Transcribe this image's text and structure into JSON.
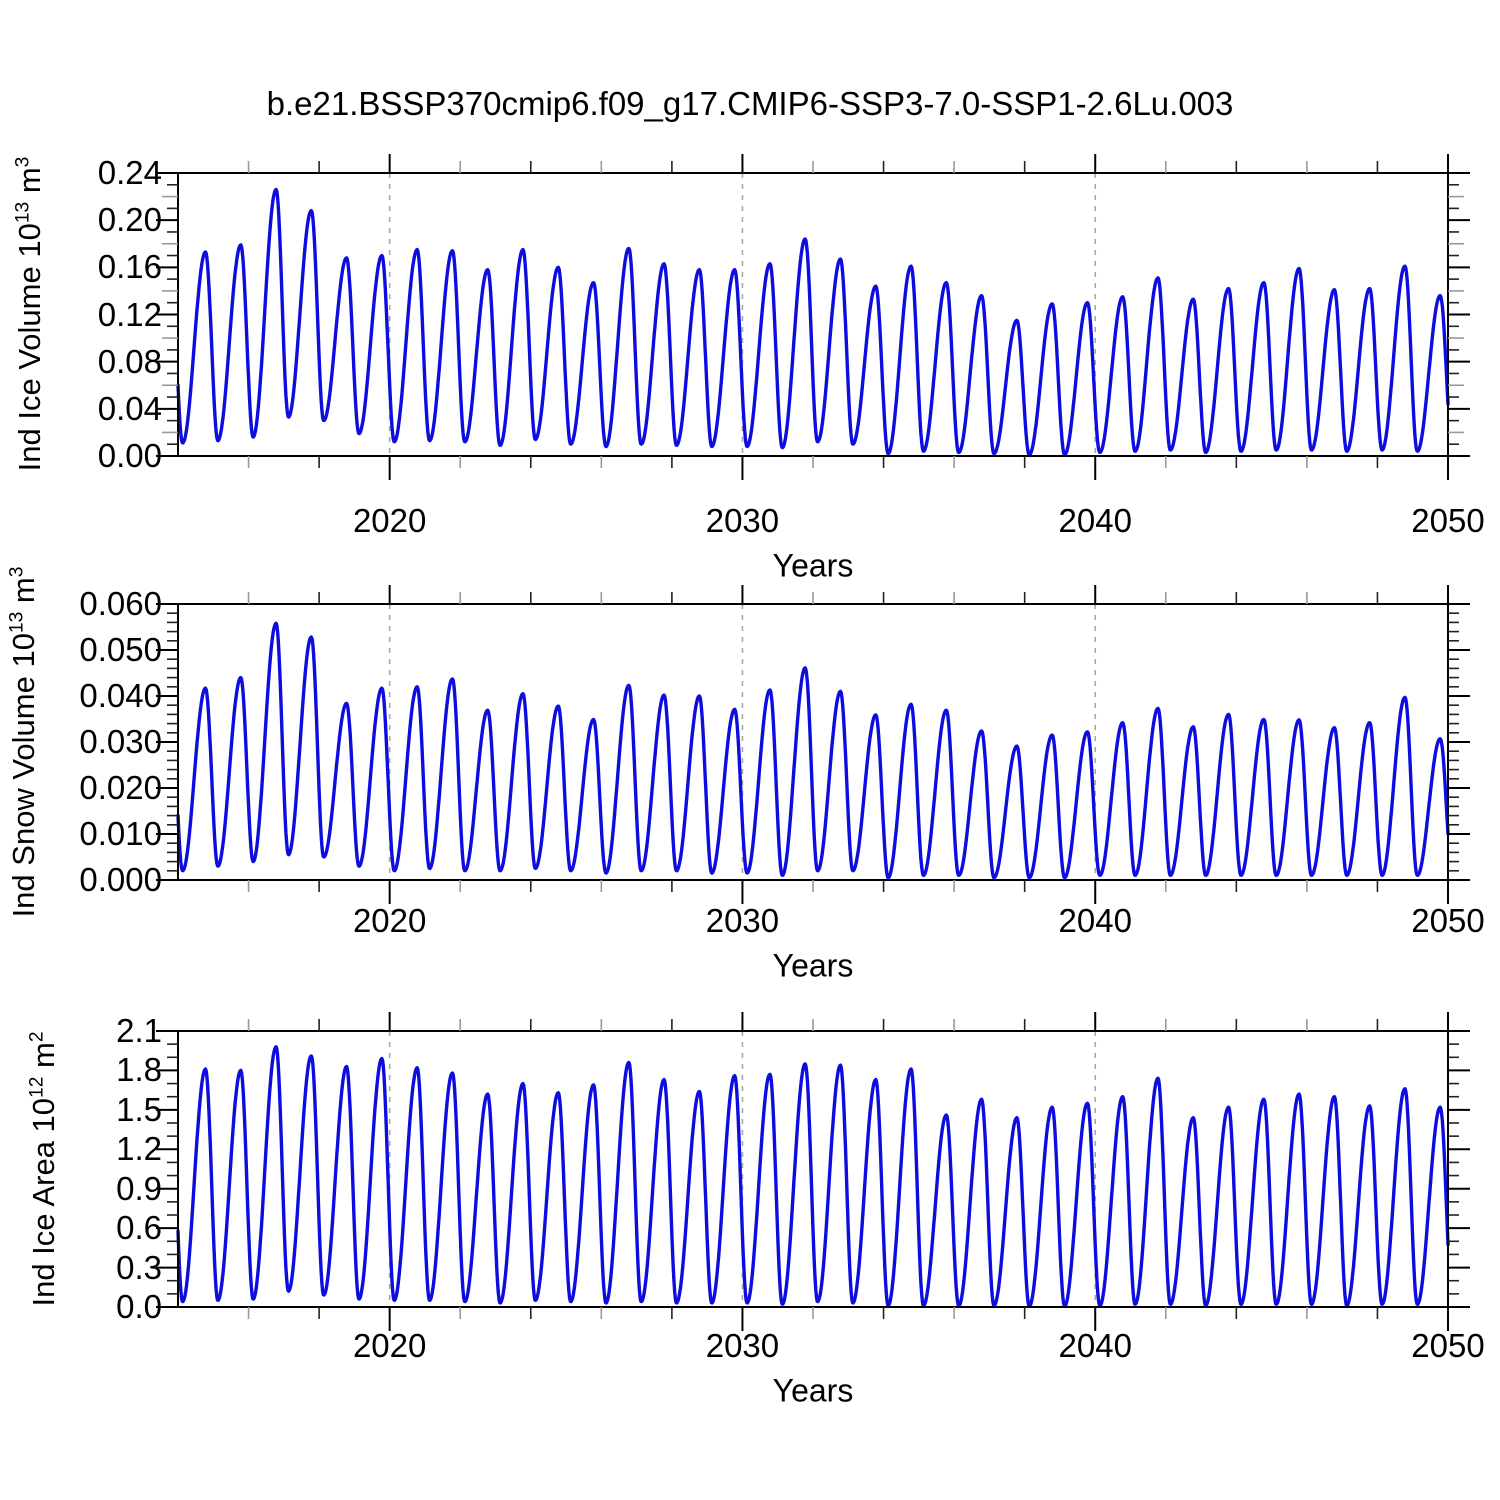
{
  "title": "b.e21.BSSP370cmip6.f09_g17.CMIP6-SSP3-7.0-SSP1-2.6Lu.003",
  "colors": {
    "line": "#0d0de0",
    "frame": "#000000",
    "grid": "#a8a8a8",
    "minor_tick": "#222222",
    "minor_tick_alt": "#999999"
  },
  "chart_data": [
    {
      "type": "line",
      "name": "ice-volume",
      "ylabel": {
        "text": "Ind Ice Volume 10",
        "exp": "13",
        "unit": " m",
        "unit_exp": "3"
      },
      "xlabel": "Years",
      "x_range": [
        2014,
        2050
      ],
      "x_tick_labels": [
        "2020",
        "2030",
        "2040",
        "2050"
      ],
      "x_tick_values": [
        2020,
        2030,
        2040,
        2050
      ],
      "x_minor_step": 2,
      "grid_years": [
        2020,
        2030,
        2040
      ],
      "y_range": [
        0,
        0.24
      ],
      "y_tick_labels": [
        "0.00",
        "0.04",
        "0.08",
        "0.12",
        "0.16",
        "0.20",
        "0.24"
      ],
      "y_tick_values": [
        0,
        0.04,
        0.08,
        0.12,
        0.16,
        0.2,
        0.24
      ],
      "y_minor_step": 0.01,
      "legend": null,
      "grid_on": false,
      "seasonal": {
        "min_phase": 0.13,
        "max_phase": 0.78,
        "years": [
          2014,
          2015,
          2016,
          2017,
          2018,
          2019,
          2020,
          2021,
          2022,
          2023,
          2024,
          2025,
          2026,
          2027,
          2028,
          2029,
          2030,
          2031,
          2032,
          2033,
          2034,
          2035,
          2036,
          2037,
          2038,
          2039,
          2040,
          2041,
          2042,
          2043,
          2044,
          2045,
          2046,
          2047,
          2048,
          2049
        ],
        "max": [
          0.173,
          0.179,
          0.226,
          0.208,
          0.168,
          0.17,
          0.175,
          0.174,
          0.158,
          0.175,
          0.16,
          0.147,
          0.176,
          0.163,
          0.158,
          0.158,
          0.163,
          0.184,
          0.167,
          0.144,
          0.161,
          0.147,
          0.136,
          0.115,
          0.129,
          0.13,
          0.135,
          0.151,
          0.133,
          0.142,
          0.147,
          0.159,
          0.141,
          0.142,
          0.161,
          0.136
        ],
        "min": [
          0.011,
          0.013,
          0.016,
          0.033,
          0.03,
          0.019,
          0.012,
          0.013,
          0.012,
          0.009,
          0.014,
          0.01,
          0.008,
          0.01,
          0.009,
          0.008,
          0.008,
          0.007,
          0.012,
          0.01,
          0.002,
          0.004,
          0.003,
          0.002,
          0.001,
          0.001,
          0.003,
          0.004,
          0.005,
          0.003,
          0.004,
          0.005,
          0.005,
          0.004,
          0.005,
          0.004
        ]
      }
    },
    {
      "type": "line",
      "name": "snow-volume",
      "ylabel": {
        "text": "Ind Snow Volume 10",
        "exp": "13",
        "unit": " m",
        "unit_exp": "3"
      },
      "xlabel": "Years",
      "x_range": [
        2014,
        2050
      ],
      "x_tick_labels": [
        "2020",
        "2030",
        "2040",
        "2050"
      ],
      "x_tick_values": [
        2020,
        2030,
        2040,
        2050
      ],
      "x_minor_step": 2,
      "grid_years": [
        2020,
        2030,
        2040
      ],
      "y_range": [
        0,
        0.06
      ],
      "y_tick_labels": [
        "0.000",
        "0.010",
        "0.020",
        "0.030",
        "0.040",
        "0.050",
        "0.060"
      ],
      "y_tick_values": [
        0,
        0.01,
        0.02,
        0.03,
        0.04,
        0.05,
        0.06
      ],
      "y_minor_step": 0.002,
      "legend": null,
      "grid_on": false,
      "seasonal": {
        "min_phase": 0.13,
        "max_phase": 0.78,
        "years": [
          2014,
          2015,
          2016,
          2017,
          2018,
          2019,
          2020,
          2021,
          2022,
          2023,
          2024,
          2025,
          2026,
          2027,
          2028,
          2029,
          2030,
          2031,
          2032,
          2033,
          2034,
          2035,
          2036,
          2037,
          2038,
          2039,
          2040,
          2041,
          2042,
          2043,
          2044,
          2045,
          2046,
          2047,
          2048,
          2049
        ],
        "max": [
          0.0417,
          0.044,
          0.0558,
          0.0528,
          0.0384,
          0.0417,
          0.042,
          0.0437,
          0.0369,
          0.0405,
          0.0378,
          0.0349,
          0.0423,
          0.0402,
          0.04,
          0.0371,
          0.0413,
          0.0461,
          0.041,
          0.0359,
          0.0382,
          0.0369,
          0.0324,
          0.0291,
          0.0315,
          0.0322,
          0.0342,
          0.0373,
          0.0333,
          0.036,
          0.0349,
          0.0348,
          0.0331,
          0.0342,
          0.0397,
          0.0307
        ],
        "min": [
          0.002,
          0.003,
          0.004,
          0.0055,
          0.005,
          0.003,
          0.002,
          0.0025,
          0.002,
          0.002,
          0.0025,
          0.002,
          0.0015,
          0.002,
          0.002,
          0.0015,
          0.0015,
          0.001,
          0.002,
          0.002,
          0.0005,
          0.001,
          0.001,
          0.0005,
          0.0005,
          0.0005,
          0.001,
          0.001,
          0.001,
          0.001,
          0.001,
          0.001,
          0.001,
          0.001,
          0.001,
          0.001
        ]
      }
    },
    {
      "type": "line",
      "name": "ice-area",
      "ylabel": {
        "text": "Ind Ice Area 10",
        "exp": "12",
        "unit": " m",
        "unit_exp": "2"
      },
      "xlabel": "Years",
      "x_range": [
        2014,
        2050
      ],
      "x_tick_labels": [
        "2020",
        "2030",
        "2040",
        "2050"
      ],
      "x_tick_values": [
        2020,
        2030,
        2040,
        2050
      ],
      "x_minor_step": 2,
      "grid_years": [
        2020,
        2030,
        2040
      ],
      "y_range": [
        0,
        2.1
      ],
      "y_tick_labels": [
        "0.0",
        "0.3",
        "0.6",
        "0.9",
        "1.2",
        "1.5",
        "1.8",
        "2.1"
      ],
      "y_tick_values": [
        0,
        0.3,
        0.6,
        0.9,
        1.2,
        1.5,
        1.8,
        2.1
      ],
      "y_minor_step": 0.1,
      "legend": null,
      "grid_on": false,
      "seasonal": {
        "min_phase": 0.13,
        "max_phase": 0.78,
        "years": [
          2014,
          2015,
          2016,
          2017,
          2018,
          2019,
          2020,
          2021,
          2022,
          2023,
          2024,
          2025,
          2026,
          2027,
          2028,
          2029,
          2030,
          2031,
          2032,
          2033,
          2034,
          2035,
          2036,
          2037,
          2038,
          2039,
          2040,
          2041,
          2042,
          2043,
          2044,
          2045,
          2046,
          2047,
          2048,
          2049
        ],
        "max": [
          1.81,
          1.8,
          1.98,
          1.91,
          1.83,
          1.89,
          1.82,
          1.78,
          1.62,
          1.7,
          1.63,
          1.69,
          1.86,
          1.73,
          1.64,
          1.76,
          1.77,
          1.85,
          1.84,
          1.73,
          1.81,
          1.46,
          1.58,
          1.44,
          1.52,
          1.55,
          1.6,
          1.74,
          1.44,
          1.52,
          1.58,
          1.62,
          1.6,
          1.53,
          1.66,
          1.52
        ],
        "min": [
          0.04,
          0.05,
          0.06,
          0.12,
          0.09,
          0.06,
          0.05,
          0.05,
          0.04,
          0.03,
          0.05,
          0.04,
          0.03,
          0.04,
          0.03,
          0.03,
          0.03,
          0.02,
          0.04,
          0.03,
          0.01,
          0.01,
          0.01,
          0.01,
          0.005,
          0.005,
          0.01,
          0.02,
          0.02,
          0.01,
          0.02,
          0.02,
          0.02,
          0.01,
          0.02,
          0.02
        ]
      }
    }
  ]
}
